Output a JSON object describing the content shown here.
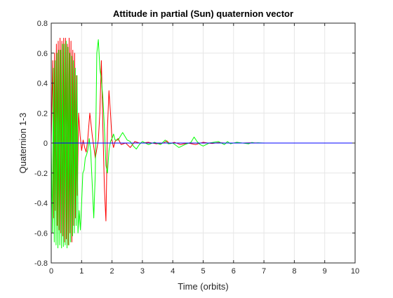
{
  "chart_data": {
    "type": "line",
    "title": "Attitude in partial (Sun) quaternion vector",
    "xlabel": "Time (orbits)",
    "ylabel": "Quaternion 1-3",
    "xlim": [
      0,
      10
    ],
    "ylim": [
      -0.8,
      0.8
    ],
    "xticks": [
      0,
      1,
      2,
      3,
      4,
      5,
      6,
      7,
      8,
      9,
      10
    ],
    "xtick_labels": [
      "0",
      "1",
      "2",
      "3",
      "4",
      "5",
      "6",
      "7",
      "8",
      "9",
      "10"
    ],
    "yticks": [
      -0.8,
      -0.6,
      -0.4,
      -0.2,
      0,
      0.2,
      0.4,
      0.6,
      0.8
    ],
    "ytick_labels": [
      "-0.8",
      "-0.6",
      "-0.4",
      "-0.2",
      "0",
      "0.2",
      "0.4",
      "0.6",
      "0.8"
    ],
    "grid": true,
    "legend": "none",
    "series": [
      {
        "color": "#ff0000",
        "x": [
          0.0,
          0.05,
          0.08,
          0.11,
          0.14,
          0.17,
          0.2,
          0.23,
          0.26,
          0.29,
          0.32,
          0.35,
          0.38,
          0.41,
          0.44,
          0.47,
          0.5,
          0.53,
          0.56,
          0.59,
          0.62,
          0.65,
          0.68,
          0.71,
          0.74,
          0.77,
          0.8,
          0.83,
          0.86,
          0.9,
          0.95,
          1.0,
          1.05,
          1.1,
          1.15,
          1.2,
          1.27,
          1.35,
          1.45,
          1.55,
          1.6,
          1.65,
          1.7,
          1.75,
          1.8,
          1.85,
          1.9,
          1.95,
          2.0,
          2.05,
          2.1,
          2.2,
          2.3,
          2.45,
          2.6,
          2.75,
          2.9,
          3.0,
          3.2,
          3.45,
          3.7,
          3.8,
          3.9,
          4.05,
          4.25,
          4.5,
          4.75,
          5.0,
          5.15,
          5.3,
          5.5,
          5.7,
          6.0,
          6.3,
          6.6,
          6.8,
          7.0,
          7.5,
          8.0,
          9.0,
          10.0
        ],
        "y": [
          0.0,
          0.55,
          -0.5,
          0.6,
          -0.45,
          0.66,
          -0.55,
          0.68,
          -0.58,
          0.7,
          -0.6,
          0.68,
          -0.62,
          0.7,
          -0.66,
          0.7,
          -0.64,
          0.66,
          -0.68,
          0.7,
          -0.6,
          0.68,
          -0.66,
          0.62,
          -0.55,
          0.6,
          -0.5,
          0.45,
          -0.35,
          0.2,
          0.05,
          -0.05,
          0.02,
          -0.03,
          -0.06,
          0.02,
          0.2,
          0.05,
          -0.1,
          0.02,
          0.2,
          0.55,
          0.1,
          -0.3,
          -0.52,
          0.1,
          0.35,
          0.2,
          0.02,
          -0.03,
          0.01,
          0.03,
          -0.01,
          0.0,
          -0.03,
          0.01,
          0.0,
          0.0,
          0.005,
          -0.005,
          0.0,
          0.015,
          -0.005,
          0.005,
          -0.01,
          0.0,
          -0.01,
          0.005,
          0.0,
          -0.003,
          0.003,
          0.0,
          0.0,
          0.0,
          0.002,
          0.0,
          0.0,
          0.0,
          0.0,
          0.0,
          0.0
        ]
      },
      {
        "color": "#00ff00",
        "x": [
          0.0,
          0.04,
          0.07,
          0.1,
          0.13,
          0.16,
          0.19,
          0.22,
          0.25,
          0.28,
          0.31,
          0.34,
          0.37,
          0.4,
          0.43,
          0.46,
          0.49,
          0.52,
          0.55,
          0.58,
          0.61,
          0.64,
          0.67,
          0.7,
          0.73,
          0.76,
          0.79,
          0.82,
          0.85,
          0.88,
          0.92,
          0.96,
          1.0,
          1.04,
          1.08,
          1.12,
          1.16,
          1.2,
          1.25,
          1.3,
          1.35,
          1.4,
          1.45,
          1.5,
          1.55,
          1.6,
          1.65,
          1.7,
          1.75,
          1.8,
          1.85,
          1.9,
          1.95,
          2.0,
          2.05,
          2.1,
          2.2,
          2.35,
          2.5,
          2.6,
          2.7,
          2.8,
          2.9,
          3.0,
          3.2,
          3.4,
          3.6,
          3.75,
          3.85,
          4.0,
          4.2,
          4.4,
          4.6,
          4.7,
          4.8,
          4.9,
          5.0,
          5.2,
          5.5,
          5.7,
          5.8,
          5.9,
          6.1,
          6.3,
          6.5,
          6.6,
          6.7,
          6.8,
          7.0,
          8.0,
          9.0,
          10.0
        ],
        "y": [
          0.0,
          -0.6,
          0.5,
          -0.66,
          0.55,
          -0.68,
          0.6,
          -0.7,
          0.62,
          -0.68,
          0.62,
          -0.7,
          0.66,
          -0.69,
          0.66,
          -0.68,
          0.68,
          -0.7,
          0.64,
          -0.68,
          0.6,
          -0.66,
          0.58,
          -0.62,
          0.55,
          -0.6,
          0.5,
          -0.55,
          0.45,
          -0.6,
          -0.45,
          -0.58,
          -0.4,
          -0.2,
          -0.18,
          -0.1,
          -0.08,
          -0.05,
          0.03,
          -0.06,
          -0.28,
          -0.5,
          -0.2,
          0.6,
          0.69,
          0.5,
          0.42,
          0.3,
          0.1,
          -0.15,
          -0.2,
          -0.05,
          0.01,
          0.03,
          0.06,
          0.02,
          0.02,
          0.07,
          0.02,
          0.01,
          -0.02,
          -0.04,
          -0.01,
          0.01,
          -0.01,
          0.005,
          -0.01,
          0.02,
          -0.005,
          0.0,
          -0.03,
          -0.01,
          0.005,
          0.04,
          0.01,
          -0.01,
          -0.02,
          0.0,
          0.01,
          -0.01,
          0.01,
          -0.005,
          0.005,
          0.0,
          -0.005,
          0.004,
          0.0,
          0.002,
          0.0,
          0.0,
          0.0,
          0.0
        ]
      },
      {
        "color": "#0000ff",
        "x": [
          0,
          10
        ],
        "y": [
          0,
          0
        ]
      }
    ]
  }
}
